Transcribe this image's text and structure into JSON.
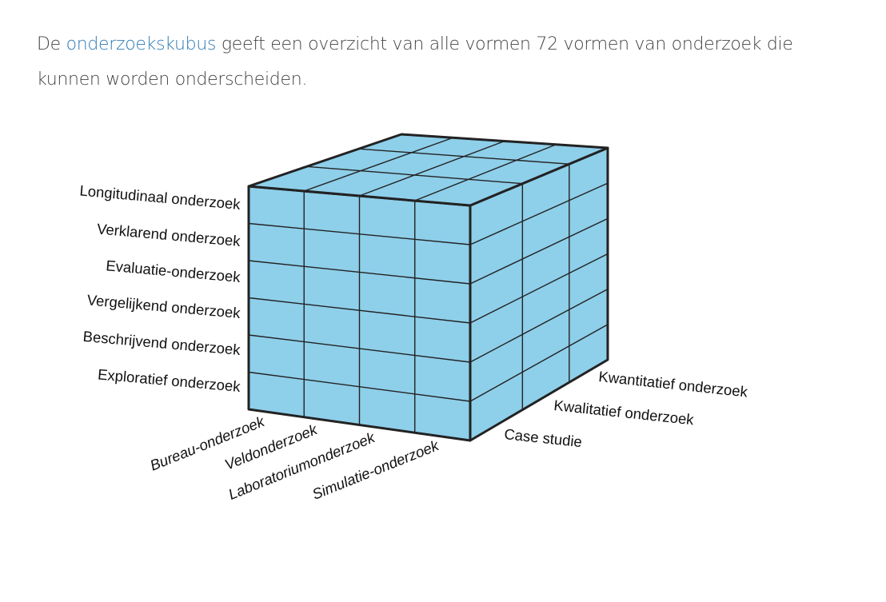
{
  "intro": {
    "before": "De ",
    "link": "onderzoekskubus",
    "after": " geeft een overzicht van alle vormen 72 vormen van onderzoek die kunnen worden onderscheiden."
  },
  "diagram": {
    "cube_color": "#8ecfea",
    "line_color": "#222222",
    "left_labels": [
      "Longitudinaal onderzoek",
      "Verklarend onderzoek",
      "Evaluatie-onderzoek",
      "Vergelijkend onderzoek",
      "Beschrijvend onderzoek",
      "Exploratief onderzoek"
    ],
    "bottom_labels": [
      "Bureau-onderzoek",
      "Veldonderzoek",
      "Laboratoriumonderzoek",
      "Simulatie-onderzoek"
    ],
    "right_labels": [
      "Case studie",
      "Kwalitatief onderzoek",
      "Kwantitatief onderzoek"
    ]
  }
}
